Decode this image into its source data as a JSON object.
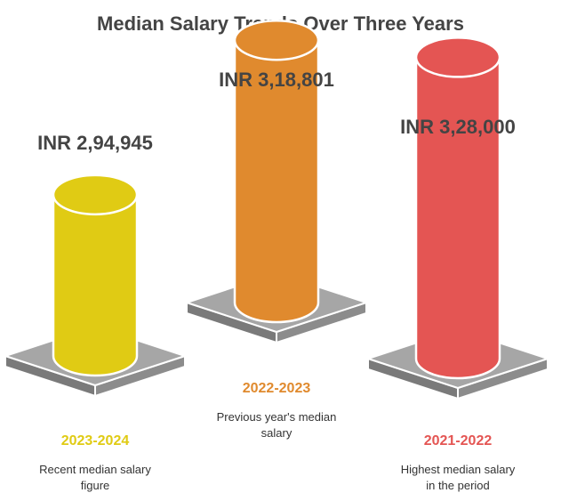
{
  "title": "Median Salary Trends Over Three Years",
  "chart_data": {
    "type": "bar",
    "title": "Median Salary Trends Over Three Years",
    "categories": [
      "2023-2024",
      "2022-2023",
      "2021-2022"
    ],
    "values": [
      294945,
      318801,
      328000
    ],
    "value_labels": [
      "INR 2,94,945",
      "INR 3,18,801",
      "INR 3,28,000"
    ],
    "descriptions": [
      [
        "Recent median salary",
        "figure"
      ],
      [
        "Previous year's median",
        "salary"
      ],
      [
        "Highest median salary",
        "in the period"
      ]
    ],
    "colors": [
      "#E0CB14",
      "#E08A2E",
      "#E45553"
    ]
  }
}
